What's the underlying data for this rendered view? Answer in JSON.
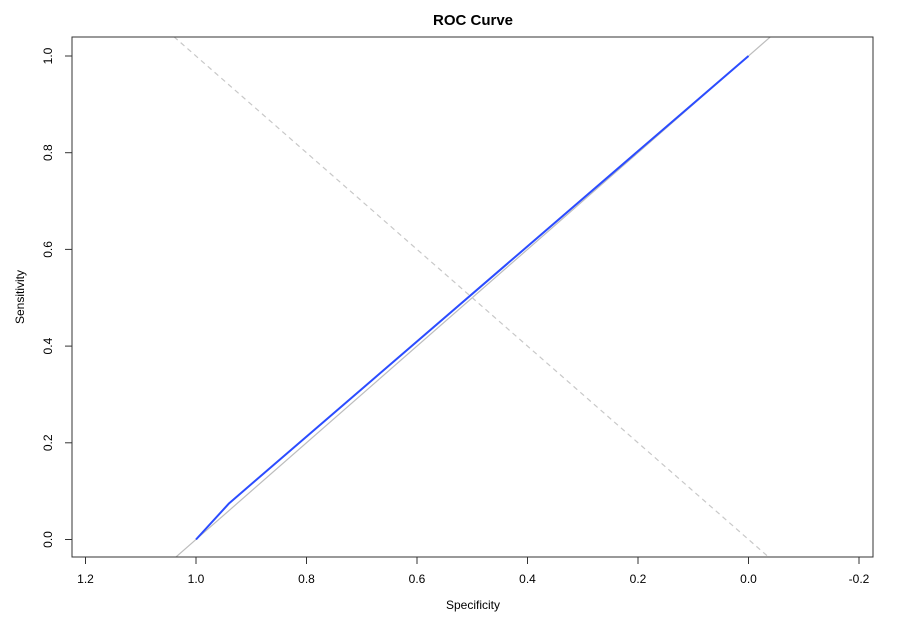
{
  "chart_data": {
    "type": "line",
    "title": "ROC Curve",
    "xlabel": "Specificity",
    "ylabel": "Sensitivity",
    "x_reversed": true,
    "xlim": [
      1.2,
      -0.2
    ],
    "ylim": [
      0.0,
      1.0
    ],
    "x_ticks": [
      1.2,
      1.0,
      0.8,
      0.6,
      0.4,
      0.2,
      0.0,
      -0.2
    ],
    "x_tick_labels": [
      "1.2",
      "1.0",
      "0.8",
      "0.6",
      "0.4",
      "0.2",
      "0.0",
      "-0.2"
    ],
    "y_ticks": [
      0.0,
      0.2,
      0.4,
      0.6,
      0.8,
      1.0
    ],
    "y_tick_labels": [
      "0.0",
      "0.2",
      "0.4",
      "0.6",
      "0.8",
      "1.0"
    ],
    "grid": false,
    "legend": "none",
    "series": [
      {
        "role": "roc-curve",
        "color": "#2b4cff",
        "style": "solid",
        "x": [
          1.0,
          0.94,
          0.0
        ],
        "y": [
          0.0,
          0.075,
          1.0
        ]
      },
      {
        "role": "reference-diagonal",
        "color": "#bdbdbd",
        "style": "solid",
        "x": [
          1.04,
          -0.04
        ],
        "y": [
          -0.04,
          1.04
        ]
      },
      {
        "role": "cross-diagonal",
        "color": "#c8c8c8",
        "style": "dashed",
        "x": [
          1.04,
          -0.04
        ],
        "y": [
          1.04,
          -0.04
        ]
      }
    ]
  }
}
